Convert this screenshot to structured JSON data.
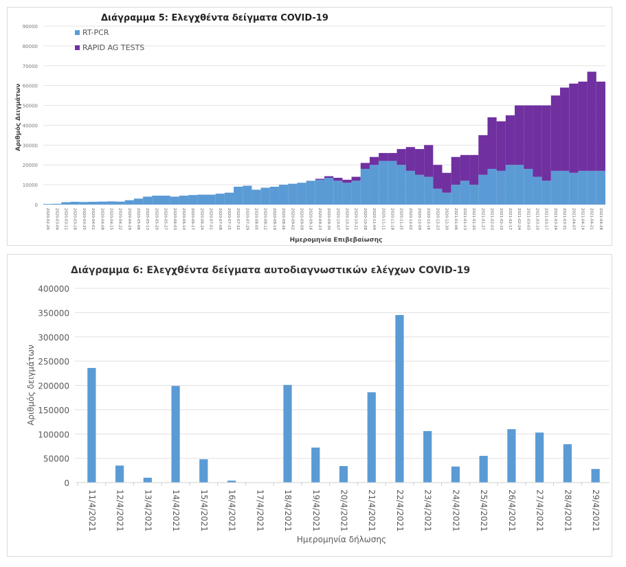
{
  "chart_data": [
    {
      "type": "bar",
      "stacked": true,
      "title": "Διάγραμμα 5: Ελεγχθέντα δείγματα COVID-19",
      "xlabel": "Ημερομηνία Επιβεβαίωσης",
      "ylabel": "Αριθμός Δειγμάτων",
      "ylim": [
        0,
        90000
      ],
      "yticks": [
        "0",
        "10000",
        "20000",
        "30000",
        "40000",
        "50000",
        "60000",
        "70000",
        "80000",
        "90000"
      ],
      "legend_position": "top-left",
      "grid": true,
      "granularity_note": "approximate weekly levels per tick week",
      "categories": [
        "2020-02-26",
        "2020-03-04",
        "2020-03-11",
        "2020-03-18",
        "2020-03-25",
        "2020-04-01",
        "2020-04-08",
        "2020-04-15",
        "2020-04-22",
        "2020-04-29",
        "2020-05-06",
        "2020-05-13",
        "2020-05-20",
        "2020-05-27",
        "2020-06-03",
        "2020-06-10",
        "2020-06-17",
        "2020-06-24",
        "2020-07-01",
        "2020-07-08",
        "2020-07-15",
        "2020-07-22",
        "2020-07-29",
        "2020-08-05",
        "2020-08-12",
        "2020-08-19",
        "2020-08-26",
        "2020-09-02",
        "2020-09-09",
        "2020-09-16",
        "2020-09-23",
        "2020-09-30",
        "2020-10-07",
        "2020-10-14",
        "2020-10-21",
        "2020-10-28",
        "2020-11-04",
        "2020-11-11",
        "2020-11-18",
        "2020-11-25",
        "2020-12-02",
        "2020-12-09",
        "2020-12-16",
        "2020-12-23",
        "2020-12-30",
        "2021-01-06",
        "2021-01-13",
        "2021-01-20",
        "2021-01-27",
        "2021-02-03",
        "2021-02-10",
        "2021-02-17",
        "2021-02-24",
        "2021-03-03",
        "2021-03-10",
        "2021-03-17",
        "2021-03-24",
        "2021-03-31",
        "2021-04-07",
        "2021-04-14",
        "2021-04-21",
        "2021-04-28"
      ],
      "series": [
        {
          "name": "RT-PCR",
          "color": "#5b9bd5",
          "values": [
            300,
            400,
            1200,
            1400,
            1300,
            1400,
            1500,
            1600,
            1500,
            2200,
            3000,
            4000,
            4500,
            4500,
            4000,
            4500,
            4800,
            5000,
            5000,
            5500,
            6000,
            9000,
            9500,
            7500,
            8500,
            9000,
            10000,
            10500,
            11000,
            12000,
            12500,
            13500,
            12000,
            11000,
            12000,
            18000,
            20000,
            22000,
            22000,
            20000,
            17000,
            15000,
            14000,
            8000,
            6000,
            10000,
            12000,
            10000,
            15000,
            18000,
            17000,
            20000,
            20000,
            18000,
            14000,
            12000,
            17000,
            17000,
            16000,
            17000,
            17000,
            17000
          ]
        },
        {
          "name": "RAPID AG TESTS",
          "color": "#7030a0",
          "values": [
            0,
            0,
            0,
            0,
            0,
            0,
            0,
            0,
            0,
            0,
            0,
            0,
            0,
            0,
            0,
            0,
            0,
            0,
            0,
            0,
            0,
            0,
            0,
            0,
            0,
            0,
            0,
            0,
            0,
            0,
            500,
            800,
            1500,
            1500,
            2000,
            3000,
            4000,
            4000,
            4000,
            8000,
            12000,
            13000,
            16000,
            12000,
            10000,
            14000,
            13000,
            15000,
            20000,
            26000,
            25000,
            25000,
            30000,
            32000,
            36000,
            38000,
            38000,
            42000,
            45000,
            45000,
            50000,
            45000
          ]
        }
      ]
    },
    {
      "type": "bar",
      "title": "Διάγραμμα 6: Ελεγχθέντα δείγματα αυτοδιαγνωστικών ελέγχων COVID-19",
      "xlabel": "Ημερομηνία δήλωσης",
      "ylabel": "Αριθμός δειγμάτων",
      "ylim": [
        0,
        400000
      ],
      "yticks": [
        "0",
        "50000",
        "100000",
        "150000",
        "200000",
        "250000",
        "300000",
        "350000",
        "400000"
      ],
      "grid": true,
      "color": "#5b9bd5",
      "categories": [
        "11/4/2021",
        "12/4/2021",
        "13/4/2021",
        "14/4/2021",
        "15/4/2021",
        "16/4/2021",
        "17/4/2021",
        "18/4/2021",
        "19/4/2021",
        "20/4/2021",
        "21/4/2021",
        "22/4/2021",
        "23/4/2021",
        "24/4/2021",
        "25/4/2021",
        "26/4/2021",
        "27/4/2021",
        "28/4/2021",
        "29/4/2021"
      ],
      "values": [
        236000,
        35000,
        10000,
        199000,
        48000,
        4000,
        0,
        201000,
        72000,
        34000,
        186000,
        345000,
        106000,
        33000,
        55000,
        110000,
        103000,
        79000,
        28000
      ]
    }
  ]
}
